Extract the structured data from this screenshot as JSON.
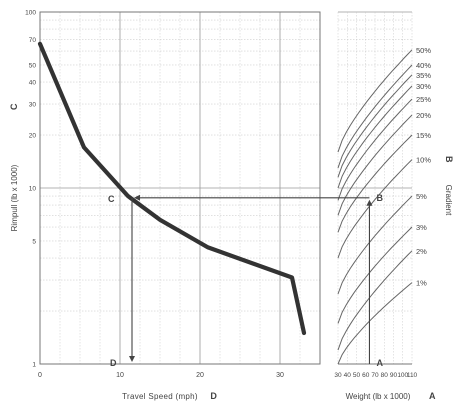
{
  "chart_data": [
    {
      "type": "line",
      "title": "",
      "xlabel": "Travel Speed (mph)",
      "xlabel_marker": "D",
      "ylabel": "Rimpull (lb x 1000)",
      "ylabel_marker": "C",
      "y_scale": "log",
      "xlim": [
        0,
        35
      ],
      "ylim": [
        1,
        100
      ],
      "grid": true,
      "x_ticks": [
        0,
        10,
        20,
        30
      ],
      "y_ticks": [
        1,
        5,
        10,
        20,
        30,
        40,
        50,
        70,
        100
      ],
      "series": [
        {
          "x": [
            0,
            5.5,
            11,
            15,
            21,
            31.5,
            33
          ],
          "y": [
            66,
            17,
            9,
            6.6,
            4.6,
            3.1,
            1.5
          ]
        }
      ],
      "reading": {
        "speed": 11.5,
        "rimpull": 8.8,
        "point_label_c": "C",
        "point_label_d": "D"
      }
    },
    {
      "type": "line",
      "title": "",
      "xlabel": "Weight (lb x 1000)",
      "xlabel_marker": "A",
      "ylabel": "Gradient",
      "ylabel_marker": "B",
      "y_scale": "log",
      "xlim": [
        30,
        110
      ],
      "ylim": [
        1,
        100
      ],
      "grid": true,
      "x_ticks": [
        30,
        40,
        50,
        60,
        70,
        80,
        90,
        100,
        110
      ],
      "series": [
        {
          "name": "50%",
          "x": [
            30,
            110
          ],
          "y": [
            16,
            61
          ]
        },
        {
          "name": "40%",
          "x": [
            30,
            110
          ],
          "y": [
            13,
            50
          ]
        },
        {
          "name": "35%",
          "x": [
            30,
            110
          ],
          "y": [
            11.5,
            44
          ]
        },
        {
          "name": "30%",
          "x": [
            30,
            110
          ],
          "y": [
            10,
            38
          ]
        },
        {
          "name": "25%",
          "x": [
            30,
            110
          ],
          "y": [
            8.5,
            32
          ]
        },
        {
          "name": "20%",
          "x": [
            30,
            110
          ],
          "y": [
            7,
            26
          ]
        },
        {
          "name": "15%",
          "x": [
            30,
            110
          ],
          "y": [
            5.6,
            20
          ]
        },
        {
          "name": "10%",
          "x": [
            30,
            110
          ],
          "y": [
            4,
            14.5
          ]
        },
        {
          "name": "5%",
          "x": [
            30,
            110
          ],
          "y": [
            2.5,
            9
          ]
        },
        {
          "name": "3%",
          "x": [
            30,
            110
          ],
          "y": [
            1.7,
            6
          ]
        },
        {
          "name": "2%",
          "x": [
            30,
            110
          ],
          "y": [
            1.2,
            4.4
          ]
        },
        {
          "name": "1%",
          "x": [
            30,
            110
          ],
          "y": [
            1,
            2.9
          ]
        }
      ],
      "reading": {
        "weight": 64,
        "point_label_a": "A",
        "point_label_b": "B"
      }
    }
  ]
}
